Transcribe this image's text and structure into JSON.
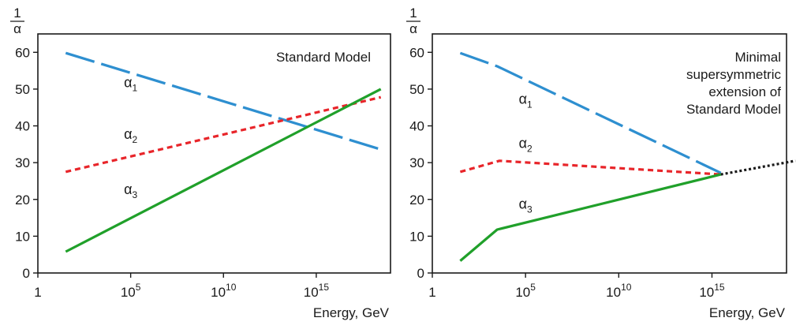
{
  "chart_data": [
    {
      "type": "line",
      "ylabel_num": "1",
      "ylabel_den": "α",
      "xlabel": "Energy, GeV",
      "xscale": "log10",
      "xlim": [
        1,
        1e+19
      ],
      "ylim": [
        0,
        65
      ],
      "yticks": [
        0,
        10,
        20,
        30,
        40,
        50,
        60
      ],
      "xticks": [
        {
          "value": 1,
          "base": "1",
          "exp": ""
        },
        {
          "value": 100000,
          "base": "10",
          "exp": "5"
        },
        {
          "value": 10000000000.0,
          "base": "10",
          "exp": "10"
        },
        {
          "value": 1000000000000000.0,
          "base": "10",
          "exp": "15"
        }
      ],
      "annotation": [
        "Standard Model"
      ],
      "series": [
        {
          "name": "α",
          "sub": "1",
          "color": "#2e8fd0",
          "dash": "38 9",
          "x": [
            31.6,
            3e+18
          ],
          "y": [
            59.8,
            33.6
          ],
          "label_at": {
            "x": 100000.0,
            "y": 50.5
          }
        },
        {
          "name": "α",
          "sub": "2",
          "color": "#e8252a",
          "dash": "7 5",
          "x": [
            31.6,
            3e+18
          ],
          "y": [
            27.5,
            47.8
          ],
          "label_at": {
            "x": 100000.0,
            "y": 36.5
          }
        },
        {
          "name": "α",
          "sub": "3",
          "color": "#20a02a",
          "dash": "",
          "x": [
            31.6,
            3e+18
          ],
          "y": [
            5.8,
            50.0
          ],
          "label_at": {
            "x": 100000.0,
            "y": 21.5
          }
        }
      ],
      "grid": false
    },
    {
      "type": "line",
      "ylabel_num": "1",
      "ylabel_den": "α",
      "xlabel": "Energy, GeV",
      "xscale": "log10",
      "xlim": [
        1,
        1e+19
      ],
      "ylim": [
        0,
        65
      ],
      "yticks": [
        0,
        10,
        20,
        30,
        40,
        50,
        60
      ],
      "xticks": [
        {
          "value": 1,
          "base": "1",
          "exp": ""
        },
        {
          "value": 100000,
          "base": "10",
          "exp": "5"
        },
        {
          "value": 10000000000.0,
          "base": "10",
          "exp": "10"
        },
        {
          "value": 1000000000000000.0,
          "base": "10",
          "exp": "15"
        }
      ],
      "annotation": [
        "Minimal",
        "supersymmetric",
        "extension of",
        "Standard Model"
      ],
      "series": [
        {
          "name": "α",
          "sub": "1",
          "color": "#2e8fd0",
          "dash": "38 9",
          "x": [
            31.6,
            3000,
            3000000000000000.0
          ],
          "y": [
            59.8,
            56.2,
            27.2
          ],
          "label_at": {
            "x": 100000.0,
            "y": 46
          }
        },
        {
          "name": "α",
          "sub": "2",
          "color": "#e8252a",
          "dash": "7 5",
          "x": [
            31.6,
            4000,
            3000000000000000.0
          ],
          "y": [
            27.5,
            30.5,
            26.8
          ],
          "label_at": {
            "x": 100000.0,
            "y": 34
          }
        },
        {
          "name": "α",
          "sub": "3",
          "color": "#20a02a",
          "dash": "",
          "x": [
            31.6,
            3000,
            3000000000000000.0
          ],
          "y": [
            3.3,
            11.8,
            26.8
          ],
          "label_at": {
            "x": 100000.0,
            "y": 17.5
          }
        },
        {
          "name": "",
          "sub": "",
          "color": "#1a1a1a",
          "dash": "3 3",
          "x": [
            3000000000000000.0,
            3e+19
          ],
          "y": [
            26.8,
            30.5
          ],
          "label_at": null
        }
      ],
      "grid": false
    }
  ]
}
